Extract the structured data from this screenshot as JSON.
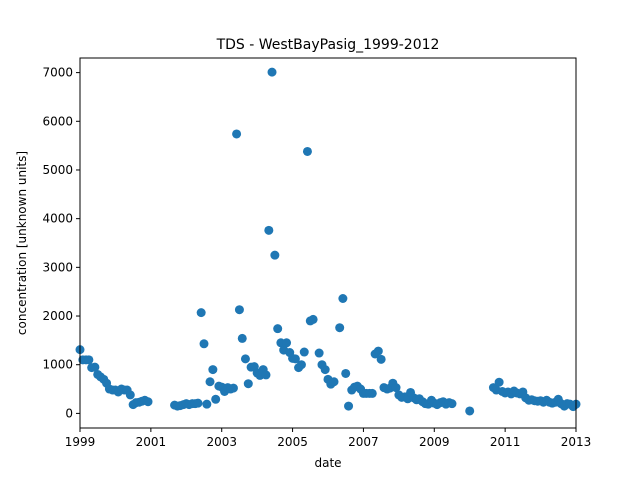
{
  "chart_data": {
    "type": "scatter",
    "title": "TDS - WestBayPasig_1999-2012",
    "xlabel": "date",
    "ylabel": "concentration [unknown units]",
    "xlim": [
      1999,
      2013
    ],
    "ylim": [
      -300,
      7300
    ],
    "x_ticks": [
      1999,
      2001,
      2003,
      2005,
      2007,
      2009,
      2011,
      2013
    ],
    "x_tick_labels": [
      "1999",
      "2001",
      "2003",
      "2005",
      "2007",
      "2009",
      "2011",
      "2013"
    ],
    "y_ticks": [
      0,
      1000,
      2000,
      3000,
      4000,
      5000,
      6000,
      7000
    ],
    "y_tick_labels": [
      "0",
      "1000",
      "2000",
      "3000",
      "4000",
      "5000",
      "6000",
      "7000"
    ],
    "grid": false,
    "legend": "none",
    "marker_color": "#1f77b4",
    "points": [
      [
        1999.0,
        1310
      ],
      [
        1999.08,
        1100
      ],
      [
        1999.17,
        1100
      ],
      [
        1999.25,
        1100
      ],
      [
        1999.33,
        940
      ],
      [
        1999.42,
        950
      ],
      [
        1999.5,
        800
      ],
      [
        1999.58,
        750
      ],
      [
        1999.67,
        700
      ],
      [
        1999.75,
        620
      ],
      [
        1999.83,
        500
      ],
      [
        1999.92,
        480
      ],
      [
        2000.0,
        480
      ],
      [
        2000.08,
        440
      ],
      [
        2000.17,
        500
      ],
      [
        2000.25,
        480
      ],
      [
        2000.33,
        480
      ],
      [
        2000.42,
        380
      ],
      [
        2000.5,
        180
      ],
      [
        2000.58,
        220
      ],
      [
        2000.67,
        230
      ],
      [
        2000.75,
        250
      ],
      [
        2000.83,
        270
      ],
      [
        2000.92,
        240
      ],
      [
        2001.67,
        170
      ],
      [
        2001.75,
        150
      ],
      [
        2001.83,
        160
      ],
      [
        2001.92,
        180
      ],
      [
        2002.0,
        200
      ],
      [
        2002.08,
        180
      ],
      [
        2002.17,
        200
      ],
      [
        2002.25,
        200
      ],
      [
        2002.33,
        210
      ],
      [
        2002.42,
        2070
      ],
      [
        2002.5,
        1430
      ],
      [
        2002.58,
        190
      ],
      [
        2002.67,
        650
      ],
      [
        2002.75,
        900
      ],
      [
        2002.83,
        290
      ],
      [
        2002.92,
        560
      ],
      [
        2003.0,
        540
      ],
      [
        2003.08,
        450
      ],
      [
        2003.17,
        530
      ],
      [
        2003.25,
        500
      ],
      [
        2003.33,
        520
      ],
      [
        2003.42,
        5740
      ],
      [
        2003.5,
        2130
      ],
      [
        2003.58,
        1540
      ],
      [
        2003.67,
        1120
      ],
      [
        2003.75,
        610
      ],
      [
        2003.83,
        950
      ],
      [
        2003.92,
        960
      ],
      [
        2004.0,
        830
      ],
      [
        2004.08,
        780
      ],
      [
        2004.17,
        900
      ],
      [
        2004.25,
        790
      ],
      [
        2004.33,
        3760
      ],
      [
        2004.42,
        7010
      ],
      [
        2004.5,
        3250
      ],
      [
        2004.58,
        1740
      ],
      [
        2004.67,
        1450
      ],
      [
        2004.75,
        1300
      ],
      [
        2004.83,
        1450
      ],
      [
        2004.92,
        1250
      ],
      [
        2005.0,
        1130
      ],
      [
        2005.08,
        1120
      ],
      [
        2005.17,
        940
      ],
      [
        2005.25,
        1000
      ],
      [
        2005.33,
        1260
      ],
      [
        2005.42,
        5380
      ],
      [
        2005.5,
        1900
      ],
      [
        2005.58,
        1930
      ],
      [
        2005.75,
        1240
      ],
      [
        2005.83,
        1000
      ],
      [
        2005.92,
        900
      ],
      [
        2006.0,
        700
      ],
      [
        2006.08,
        600
      ],
      [
        2006.17,
        650
      ],
      [
        2006.33,
        1760
      ],
      [
        2006.42,
        2360
      ],
      [
        2006.5,
        820
      ],
      [
        2006.58,
        150
      ],
      [
        2006.67,
        480
      ],
      [
        2006.75,
        540
      ],
      [
        2006.83,
        560
      ],
      [
        2006.92,
        500
      ],
      [
        2007.0,
        410
      ],
      [
        2007.08,
        410
      ],
      [
        2007.17,
        410
      ],
      [
        2007.25,
        410
      ],
      [
        2007.33,
        1220
      ],
      [
        2007.42,
        1280
      ],
      [
        2007.5,
        1110
      ],
      [
        2007.58,
        530
      ],
      [
        2007.67,
        500
      ],
      [
        2007.75,
        520
      ],
      [
        2007.83,
        620
      ],
      [
        2007.92,
        530
      ],
      [
        2008.0,
        380
      ],
      [
        2008.08,
        330
      ],
      [
        2008.17,
        340
      ],
      [
        2008.25,
        300
      ],
      [
        2008.33,
        430
      ],
      [
        2008.42,
        320
      ],
      [
        2008.5,
        280
      ],
      [
        2008.58,
        300
      ],
      [
        2008.67,
        240
      ],
      [
        2008.75,
        200
      ],
      [
        2008.83,
        190
      ],
      [
        2008.92,
        270
      ],
      [
        2009.0,
        210
      ],
      [
        2009.08,
        180
      ],
      [
        2009.17,
        220
      ],
      [
        2009.25,
        240
      ],
      [
        2009.33,
        190
      ],
      [
        2009.42,
        220
      ],
      [
        2009.5,
        200
      ],
      [
        2010.0,
        50
      ],
      [
        2010.67,
        530
      ],
      [
        2010.75,
        480
      ],
      [
        2010.83,
        640
      ],
      [
        2010.92,
        450
      ],
      [
        2011.0,
        420
      ],
      [
        2011.08,
        440
      ],
      [
        2011.17,
        400
      ],
      [
        2011.25,
        460
      ],
      [
        2011.33,
        420
      ],
      [
        2011.42,
        400
      ],
      [
        2011.5,
        440
      ],
      [
        2011.58,
        320
      ],
      [
        2011.67,
        270
      ],
      [
        2011.75,
        280
      ],
      [
        2011.83,
        260
      ],
      [
        2011.92,
        250
      ],
      [
        2012.0,
        260
      ],
      [
        2012.08,
        230
      ],
      [
        2012.17,
        270
      ],
      [
        2012.25,
        230
      ],
      [
        2012.33,
        210
      ],
      [
        2012.42,
        230
      ],
      [
        2012.5,
        290
      ],
      [
        2012.58,
        200
      ],
      [
        2012.67,
        150
      ],
      [
        2012.75,
        200
      ],
      [
        2012.83,
        190
      ],
      [
        2012.92,
        140
      ],
      [
        2013.0,
        190
      ]
    ]
  }
}
